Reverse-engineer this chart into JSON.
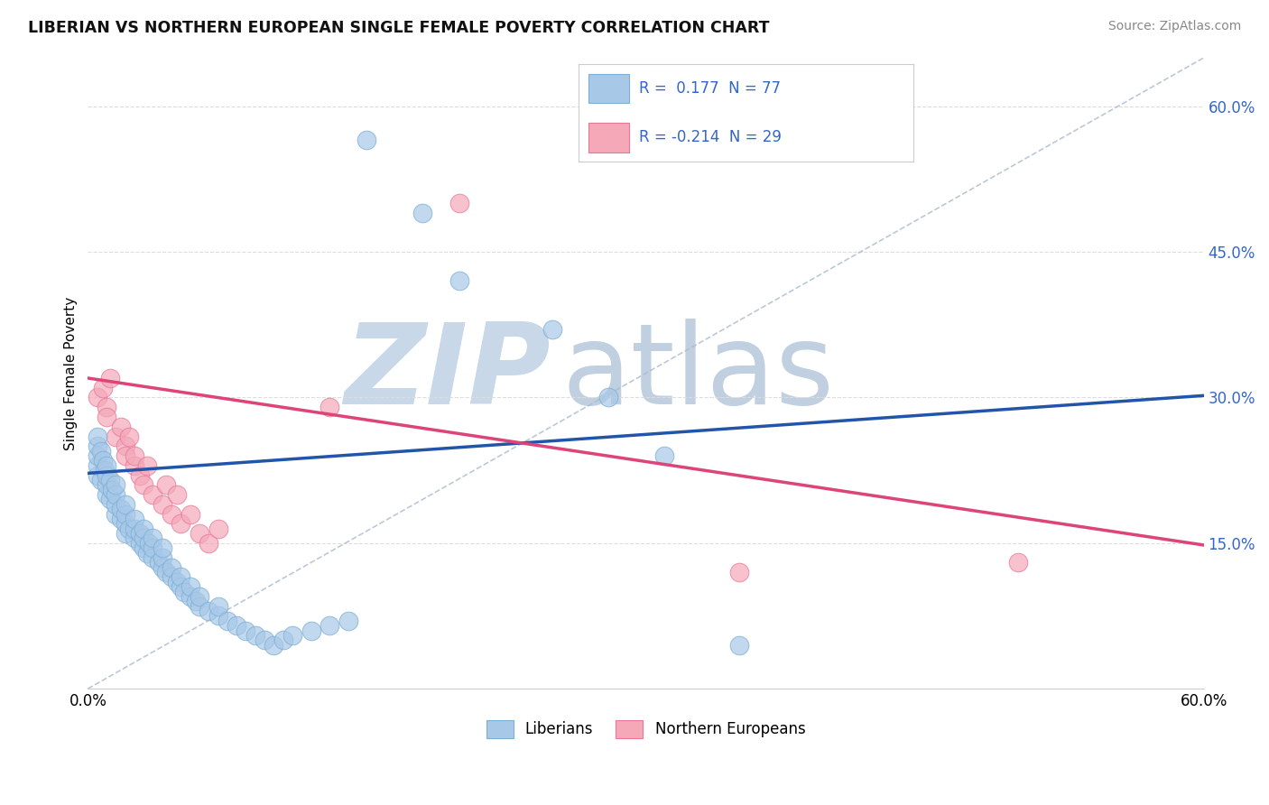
{
  "title": "LIBERIAN VS NORTHERN EUROPEAN SINGLE FEMALE POVERTY CORRELATION CHART",
  "source": "Source: ZipAtlas.com",
  "ylabel": "Single Female Poverty",
  "xlim": [
    0.0,
    0.6
  ],
  "ylim": [
    0.0,
    0.65
  ],
  "xtick_positions": [
    0.0,
    0.6
  ],
  "xtick_labels": [
    "0.0%",
    "60.0%"
  ],
  "ytick_positions": [
    0.15,
    0.3,
    0.45,
    0.6
  ],
  "ytick_labels": [
    "15.0%",
    "30.0%",
    "45.0%",
    "60.0%"
  ],
  "blue_color": "#a8c8e8",
  "pink_color": "#f4a8b8",
  "blue_edge": "#7bafd4",
  "pink_edge": "#e87898",
  "blue_line_color": "#2255aa",
  "pink_line_color": "#dd4477",
  "ref_line_color": "#aabbcc",
  "watermark_zip_color": "#c8d8e8",
  "watermark_atlas_color": "#c0d0e0",
  "grid_color": "#dddddd",
  "title_color": "#111111",
  "source_color": "#888888",
  "ytick_color": "#3366cc",
  "legend_box_color": "#f0f4f8",
  "legend_border_color": "#cccccc",
  "legend_text_color": "#3366cc",
  "blue_scatter_x": [
    0.005,
    0.005,
    0.005,
    0.005,
    0.005,
    0.007,
    0.007,
    0.008,
    0.009,
    0.01,
    0.01,
    0.01,
    0.01,
    0.012,
    0.012,
    0.013,
    0.015,
    0.015,
    0.015,
    0.015,
    0.018,
    0.018,
    0.02,
    0.02,
    0.02,
    0.02,
    0.022,
    0.025,
    0.025,
    0.025,
    0.028,
    0.028,
    0.03,
    0.03,
    0.03,
    0.032,
    0.033,
    0.035,
    0.035,
    0.035,
    0.038,
    0.04,
    0.04,
    0.04,
    0.042,
    0.045,
    0.045,
    0.048,
    0.05,
    0.05,
    0.052,
    0.055,
    0.055,
    0.058,
    0.06,
    0.06,
    0.065,
    0.07,
    0.07,
    0.075,
    0.08,
    0.085,
    0.09,
    0.095,
    0.1,
    0.105,
    0.11,
    0.12,
    0.13,
    0.14,
    0.15,
    0.18,
    0.2,
    0.25,
    0.28,
    0.31,
    0.35
  ],
  "blue_scatter_y": [
    0.22,
    0.23,
    0.24,
    0.25,
    0.26,
    0.215,
    0.245,
    0.235,
    0.225,
    0.2,
    0.21,
    0.22,
    0.23,
    0.195,
    0.215,
    0.205,
    0.18,
    0.19,
    0.2,
    0.21,
    0.175,
    0.185,
    0.16,
    0.17,
    0.18,
    0.19,
    0.165,
    0.155,
    0.165,
    0.175,
    0.15,
    0.16,
    0.145,
    0.155,
    0.165,
    0.14,
    0.15,
    0.135,
    0.145,
    0.155,
    0.13,
    0.125,
    0.135,
    0.145,
    0.12,
    0.115,
    0.125,
    0.11,
    0.105,
    0.115,
    0.1,
    0.095,
    0.105,
    0.09,
    0.085,
    0.095,
    0.08,
    0.075,
    0.085,
    0.07,
    0.065,
    0.06,
    0.055,
    0.05,
    0.045,
    0.05,
    0.055,
    0.06,
    0.065,
    0.07,
    0.565,
    0.49,
    0.42,
    0.37,
    0.3,
    0.24,
    0.045
  ],
  "pink_scatter_x": [
    0.005,
    0.008,
    0.01,
    0.01,
    0.012,
    0.015,
    0.018,
    0.02,
    0.02,
    0.022,
    0.025,
    0.025,
    0.028,
    0.03,
    0.032,
    0.035,
    0.04,
    0.042,
    0.045,
    0.048,
    0.05,
    0.055,
    0.06,
    0.065,
    0.07,
    0.13,
    0.2,
    0.35,
    0.5
  ],
  "pink_scatter_y": [
    0.3,
    0.31,
    0.29,
    0.28,
    0.32,
    0.26,
    0.27,
    0.25,
    0.24,
    0.26,
    0.23,
    0.24,
    0.22,
    0.21,
    0.23,
    0.2,
    0.19,
    0.21,
    0.18,
    0.2,
    0.17,
    0.18,
    0.16,
    0.15,
    0.165,
    0.29,
    0.5,
    0.12,
    0.13
  ],
  "blue_trendline": [
    0.222,
    0.302
  ],
  "pink_trendline": [
    0.32,
    0.148
  ]
}
